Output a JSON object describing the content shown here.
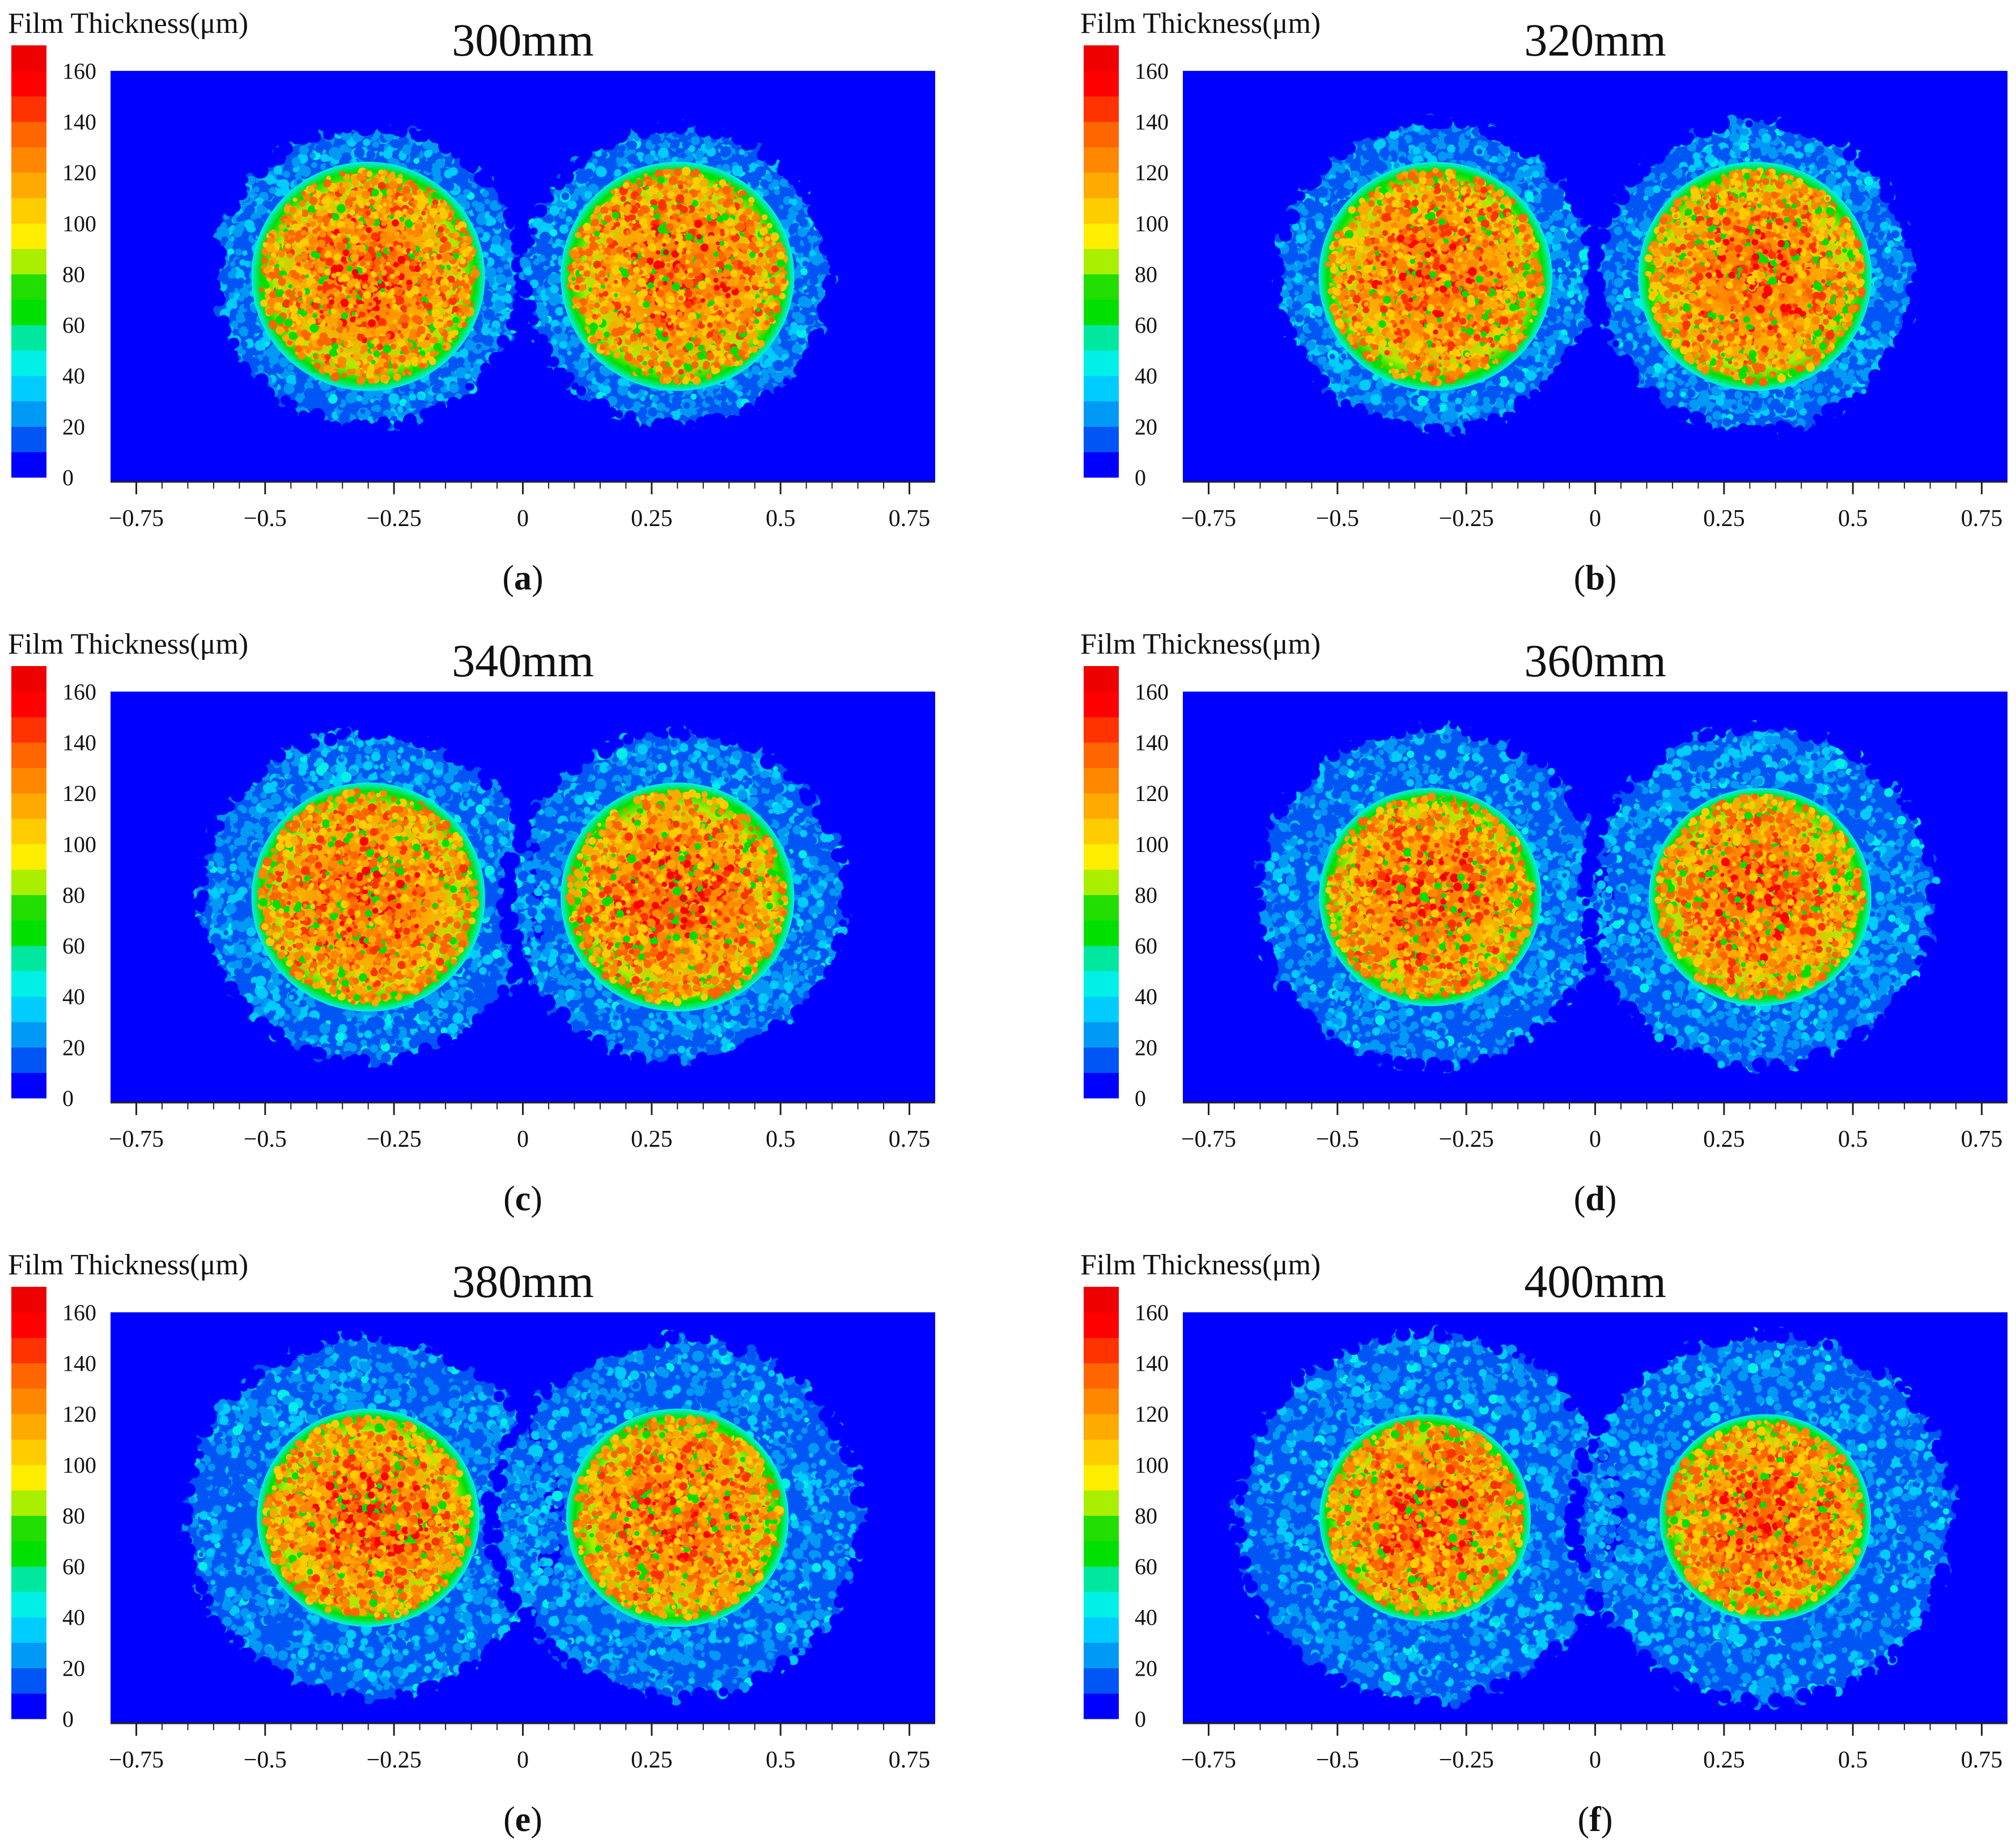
{
  "colorbar": {
    "title": "Film Thickness(μm)",
    "ticks": [
      0,
      20,
      40,
      60,
      80,
      100,
      120,
      140,
      160
    ],
    "min": 0,
    "max": 170,
    "band_colors": [
      "#0000ff",
      "#0055f5",
      "#0099f5",
      "#00ccff",
      "#00f0e8",
      "#00e8a0",
      "#00e000",
      "#22dd00",
      "#aaee00",
      "#ffee00",
      "#ffcc00",
      "#ffaa00",
      "#ff8800",
      "#ff6600",
      "#ff3300",
      "#ff0000",
      "#ee0000"
    ]
  },
  "chart_data": [
    {
      "type": "heatmap",
      "caption": "a",
      "title": "300mm",
      "xlabel": "",
      "ylabel": "",
      "xlim": [
        -0.8,
        0.8
      ],
      "x_ticks": [
        -0.75,
        -0.5,
        -0.25,
        0,
        0.25,
        0.5,
        0.75
      ],
      "x_tick_labels": [
        "−0.75",
        "−0.5",
        "−0.25",
        "0",
        "0.25",
        "0.5",
        "0.75"
      ],
      "spray_centers_x": [
        -0.3,
        0.3
      ],
      "outer_radius": 0.3,
      "core_radius": 0.21,
      "core_thickness_um": [
        80,
        160
      ],
      "outer_thickness_um": [
        10,
        40
      ],
      "background_thickness_um": 0
    },
    {
      "type": "heatmap",
      "caption": "b",
      "title": "320mm",
      "xlabel": "",
      "ylabel": "",
      "xlim": [
        -0.8,
        0.8
      ],
      "x_ticks": [
        -0.75,
        -0.5,
        -0.25,
        0,
        0.25,
        0.5,
        0.75
      ],
      "x_tick_labels": [
        "−0.75",
        "−0.5",
        "−0.25",
        "0",
        "0.25",
        "0.5",
        "0.75"
      ],
      "spray_centers_x": [
        -0.31,
        0.31
      ],
      "outer_radius": 0.31,
      "core_radius": 0.21,
      "core_thickness_um": [
        80,
        160
      ],
      "outer_thickness_um": [
        10,
        40
      ],
      "background_thickness_um": 0
    },
    {
      "type": "heatmap",
      "caption": "c",
      "title": "340mm",
      "xlabel": "",
      "ylabel": "",
      "xlim": [
        -0.8,
        0.8
      ],
      "x_ticks": [
        -0.75,
        -0.5,
        -0.25,
        0,
        0.25,
        0.5,
        0.75
      ],
      "x_tick_labels": [
        "−0.75",
        "−0.5",
        "−0.25",
        "0",
        "0.25",
        "0.5",
        "0.75"
      ],
      "spray_centers_x": [
        -0.3,
        0.3
      ],
      "outer_radius": 0.33,
      "core_radius": 0.21,
      "core_thickness_um": [
        80,
        160
      ],
      "outer_thickness_um": [
        10,
        40
      ],
      "background_thickness_um": 0
    },
    {
      "type": "heatmap",
      "caption": "d",
      "title": "360mm",
      "xlabel": "",
      "ylabel": "",
      "xlim": [
        -0.8,
        0.8
      ],
      "x_ticks": [
        -0.75,
        -0.5,
        -0.25,
        0,
        0.25,
        0.5,
        0.75
      ],
      "x_tick_labels": [
        "−0.75",
        "−0.5",
        "−0.25",
        "0",
        "0.25",
        "0.5",
        "0.75"
      ],
      "spray_centers_x": [
        -0.32,
        0.32
      ],
      "outer_radius": 0.34,
      "core_radius": 0.2,
      "core_thickness_um": [
        80,
        160
      ],
      "outer_thickness_um": [
        10,
        40
      ],
      "background_thickness_um": 0
    },
    {
      "type": "heatmap",
      "caption": "e",
      "title": "380mm",
      "xlabel": "",
      "ylabel": "",
      "xlim": [
        -0.8,
        0.8
      ],
      "x_ticks": [
        -0.75,
        -0.5,
        -0.25,
        0,
        0.25,
        0.5,
        0.75
      ],
      "x_tick_labels": [
        "−0.75",
        "−0.5",
        "−0.25",
        "0",
        "0.25",
        "0.5",
        "0.75"
      ],
      "spray_centers_x": [
        -0.3,
        0.3
      ],
      "outer_radius": 0.36,
      "core_radius": 0.2,
      "core_thickness_um": [
        80,
        160
      ],
      "outer_thickness_um": [
        10,
        40
      ],
      "background_thickness_um": 0
    },
    {
      "type": "heatmap",
      "caption": "f",
      "title": "400mm",
      "xlabel": "",
      "ylabel": "",
      "xlim": [
        -0.8,
        0.8
      ],
      "x_ticks": [
        -0.75,
        -0.5,
        -0.25,
        0,
        0.25,
        0.5,
        0.75
      ],
      "x_tick_labels": [
        "−0.75",
        "−0.5",
        "−0.25",
        "0",
        "0.25",
        "0.5",
        "0.75"
      ],
      "spray_centers_x": [
        -0.33,
        0.33
      ],
      "outer_radius": 0.37,
      "core_radius": 0.19,
      "core_thickness_um": [
        80,
        160
      ],
      "outer_thickness_um": [
        10,
        40
      ],
      "background_thickness_um": 0
    }
  ]
}
